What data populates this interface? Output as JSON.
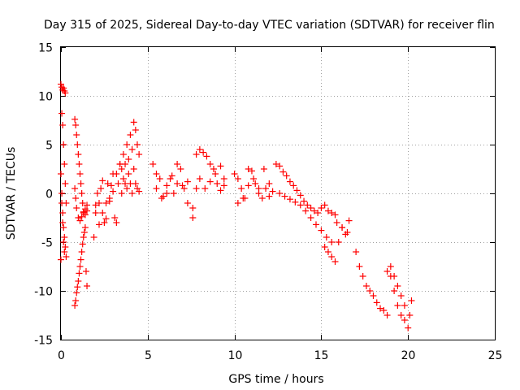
{
  "chart_data": {
    "type": "scatter",
    "title": "Day 315 of 2025, Sidereal Day-to-day VTEC variation (SDTVAR) for receiver flin",
    "xlabel": "GPS time / hours",
    "ylabel": "SDTVAR / TECUs",
    "xlim": [
      0,
      25
    ],
    "ylim": [
      -15,
      15
    ],
    "xticks": [
      0,
      5,
      10,
      15,
      20,
      25
    ],
    "yticks": [
      -15,
      -10,
      -5,
      0,
      5,
      10,
      15
    ],
    "grid": true,
    "marker": "+",
    "marker_color": "#ff0000",
    "series": [
      {
        "name": "SDTVAR",
        "x": [
          0.0,
          0.05,
          0.1,
          0.15,
          0.2,
          0.25,
          0.05,
          0.1,
          0.15,
          0.2,
          0.25,
          0.3,
          0.0,
          0.05,
          0.1,
          0.15,
          0.2,
          0.25,
          0.3,
          0.2,
          0.15,
          0.1,
          0.05,
          0.0,
          0.8,
          0.85,
          0.9,
          0.95,
          1.0,
          1.05,
          1.1,
          1.15,
          1.2,
          1.25,
          1.3,
          1.4,
          1.5,
          0.8,
          0.85,
          0.9,
          1.0,
          1.1,
          1.2,
          1.3,
          1.4,
          1.5,
          0.8,
          0.85,
          0.9,
          0.95,
          1.0,
          1.05,
          1.1,
          1.15,
          1.2,
          1.25,
          1.3,
          1.35,
          1.4,
          1.45,
          1.5,
          1.9,
          2.0,
          2.1,
          2.2,
          2.3,
          2.4,
          2.5,
          2.6,
          2.7,
          2.8,
          2.9,
          3.0,
          3.1,
          3.2,
          3.3,
          3.4,
          3.5,
          2.0,
          2.2,
          2.4,
          2.6,
          2.8,
          3.0,
          3.2,
          3.4,
          3.6,
          3.7,
          3.8,
          3.9,
          4.0,
          4.1,
          4.2,
          4.3,
          4.4,
          4.5,
          3.5,
          3.6,
          3.7,
          3.8,
          3.9,
          4.0,
          4.1,
          4.2,
          4.3,
          4.4,
          4.5,
          5.3,
          5.5,
          5.7,
          5.9,
          6.1,
          6.3,
          6.5,
          6.7,
          6.9,
          7.1,
          7.3,
          5.5,
          5.8,
          6.1,
          6.4,
          6.7,
          7.0,
          7.3,
          7.6,
          7.8,
          8.0,
          8.2,
          8.4,
          8.6,
          8.8,
          9.0,
          9.2,
          9.4,
          7.6,
          7.8,
          8.0,
          8.3,
          8.6,
          8.9,
          9.2,
          9.4,
          10.0,
          10.2,
          10.4,
          10.6,
          10.8,
          11.0,
          11.2,
          11.4,
          11.6,
          11.8,
          12.0,
          12.2,
          10.2,
          10.5,
          10.8,
          11.1,
          11.4,
          11.7,
          12.0,
          12.4,
          12.6,
          12.8,
          13.0,
          13.2,
          13.4,
          13.6,
          13.8,
          14.0,
          14.2,
          14.4,
          14.6,
          14.8,
          15.0,
          15.2,
          15.4,
          15.6,
          15.8,
          12.6,
          12.9,
          13.2,
          13.5,
          13.8,
          14.1,
          14.4,
          14.7,
          15.0,
          15.3,
          15.6,
          15.9,
          16.2,
          16.5,
          15.2,
          15.4,
          15.6,
          15.8,
          16.0,
          16.2,
          16.4,
          16.6,
          17.0,
          17.2,
          17.4,
          17.6,
          17.8,
          18.0,
          18.2,
          18.4,
          18.6,
          18.8,
          19.0,
          19.2,
          19.4,
          19.6,
          19.8,
          18.8,
          19.0,
          19.2,
          19.4,
          19.6,
          19.8,
          20.0,
          20.1,
          20.2
        ],
        "y": [
          11.2,
          10.9,
          10.6,
          10.8,
          10.5,
          10.3,
          8.2,
          7.0,
          5.0,
          3.0,
          1.0,
          -1.0,
          2.0,
          0.0,
          -2.0,
          -3.5,
          -4.5,
          -5.5,
          -6.5,
          -6.0,
          -5.0,
          -3.0,
          -1.0,
          -6.8,
          7.6,
          7.0,
          6.0,
          5.0,
          4.0,
          3.0,
          2.0,
          1.0,
          0.0,
          -1.0,
          -2.0,
          -2.2,
          -1.8,
          0.5,
          -0.5,
          -1.5,
          -2.5,
          -2.8,
          -2.4,
          -1.9,
          -1.6,
          -1.2,
          -11.5,
          -11.0,
          -10.2,
          -9.6,
          -9.0,
          -8.2,
          -7.5,
          -6.8,
          -6.0,
          -5.2,
          -4.5,
          -4.0,
          -3.5,
          -8.0,
          -9.5,
          -4.5,
          -2.0,
          0.0,
          -1.0,
          0.5,
          -2.0,
          -3.0,
          -1.0,
          1.0,
          -0.5,
          0.8,
          2.0,
          -2.5,
          -3.0,
          1.0,
          3.0,
          2.5,
          -1.2,
          -3.2,
          1.3,
          -2.6,
          -0.8,
          0.2,
          2.0,
          3.0,
          4.0,
          1.0,
          5.0,
          3.5,
          6.0,
          4.5,
          7.3,
          6.5,
          5.0,
          4.0,
          0.0,
          1.5,
          3.0,
          0.5,
          2.0,
          1.0,
          0.0,
          2.5,
          1.0,
          0.5,
          0.2,
          3.0,
          0.5,
          1.5,
          -0.3,
          0.8,
          1.5,
          0.0,
          1.0,
          2.5,
          0.5,
          1.2,
          2.0,
          -0.5,
          0.0,
          1.8,
          3.0,
          0.8,
          -1.0,
          -1.5,
          4.0,
          4.5,
          4.2,
          3.8,
          3.0,
          2.5,
          1.0,
          2.8,
          1.5,
          -2.5,
          0.5,
          1.5,
          0.5,
          1.2,
          2.0,
          0.3,
          0.8,
          2.0,
          1.5,
          0.5,
          -0.5,
          2.5,
          2.3,
          1.0,
          0.0,
          -0.5,
          0.5,
          1.0,
          0.2,
          -1.0,
          -0.5,
          0.8,
          1.5,
          0.5,
          2.5,
          -0.3,
          3.0,
          2.8,
          2.2,
          1.8,
          1.2,
          0.8,
          0.3,
          -0.2,
          -0.8,
          -1.2,
          -1.5,
          -1.8,
          -2.0,
          -1.5,
          -1.2,
          -1.8,
          -2.0,
          -2.2,
          0.0,
          -0.3,
          -0.6,
          -0.9,
          -1.2,
          -1.8,
          -2.5,
          -3.2,
          -3.8,
          -4.5,
          -5.0,
          -3.0,
          -3.5,
          -4.0,
          -5.5,
          -6.0,
          -6.5,
          -7.0,
          -5.0,
          -3.5,
          -4.2,
          -2.8,
          -6.0,
          -7.5,
          -8.5,
          -9.5,
          -10.0,
          -10.5,
          -11.2,
          -11.8,
          -12.0,
          -12.5,
          -7.5,
          -8.5,
          -9.5,
          -10.5,
          -11.5,
          -8.0,
          -8.5,
          -10.0,
          -11.5,
          -12.5,
          -13.0,
          -13.8,
          -12.5,
          -11.0
        ]
      }
    ]
  }
}
